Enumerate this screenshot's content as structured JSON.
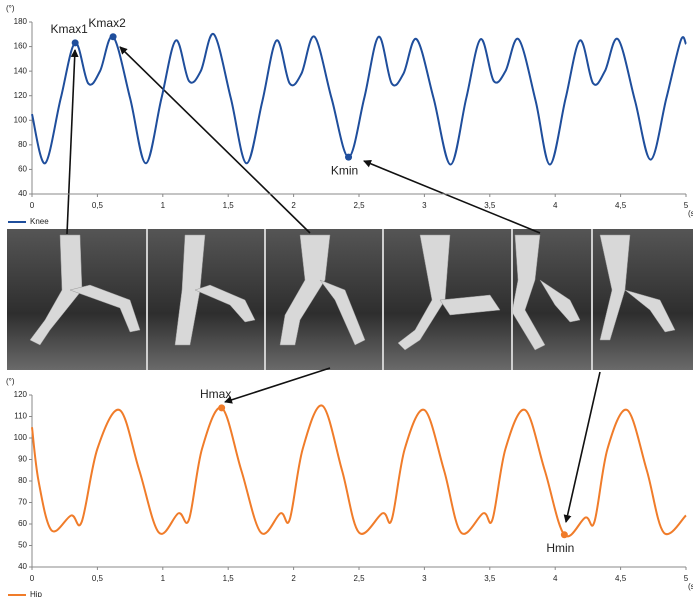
{
  "chart_data": [
    {
      "type": "line",
      "y_label": "(°)",
      "x_label": "(s)",
      "x": [
        0,
        0.1,
        0.22,
        0.33,
        0.43,
        0.52,
        0.62,
        0.75,
        0.87,
        0.99,
        1.1,
        1.2,
        1.29,
        1.39,
        1.52,
        1.64,
        1.76,
        1.87,
        1.97,
        2.06,
        2.16,
        2.29,
        2.42,
        2.54,
        2.65,
        2.75,
        2.84,
        2.94,
        3.07,
        3.2,
        3.32,
        3.43,
        3.53,
        3.62,
        3.72,
        3.85,
        3.96,
        4.08,
        4.19,
        4.29,
        4.38,
        4.48,
        4.61,
        4.73,
        4.85,
        4.96,
        5
      ],
      "series": [
        {
          "name": "Knee",
          "color": "#1f4e9c",
          "values": [
            105,
            65,
            118,
            163,
            130,
            140,
            168,
            118,
            65,
            118,
            165,
            132,
            140,
            170,
            118,
            65,
            115,
            165,
            130,
            138,
            168,
            118,
            70,
            118,
            168,
            130,
            138,
            166,
            118,
            64,
            118,
            166,
            132,
            140,
            166,
            116,
            64,
            118,
            165,
            130,
            140,
            166,
            116,
            68,
            118,
            165,
            162
          ]
        }
      ],
      "annotations": [
        {
          "text": "Kmax1",
          "x": 0.33,
          "y": 163
        },
        {
          "text": "Kmax2",
          "x": 0.62,
          "y": 168
        },
        {
          "text": "Kmin",
          "x": 2.42,
          "y": 70
        }
      ],
      "xlim": [
        0,
        5
      ],
      "xticks": [
        0,
        {
          "value": 0.5,
          "label": "0,5"
        },
        1,
        {
          "value": 1.5,
          "label": "1,5"
        },
        2,
        {
          "value": 2.5,
          "label": "2,5"
        },
        3,
        {
          "value": 3.5,
          "label": "3,5"
        },
        4,
        {
          "value": 4.5,
          "label": "4,5"
        },
        5
      ],
      "ylim": [
        40,
        180
      ],
      "yticks": [
        40,
        60,
        80,
        100,
        120,
        140,
        160,
        180
      ],
      "grid": false,
      "legend": "bottom-left"
    },
    {
      "type": "line",
      "y_label": "(°)",
      "x_label": "(s)",
      "x": [
        0,
        0.05,
        0.15,
        0.3,
        0.38,
        0.5,
        0.67,
        0.82,
        0.97,
        1.12,
        1.2,
        1.3,
        1.45,
        1.6,
        1.75,
        1.9,
        1.97,
        2.07,
        2.22,
        2.37,
        2.5,
        2.68,
        2.75,
        2.85,
        3.0,
        3.15,
        3.28,
        3.45,
        3.52,
        3.62,
        3.77,
        3.92,
        4.07,
        4.23,
        4.3,
        4.4,
        4.55,
        4.7,
        4.83,
        5
      ],
      "series": [
        {
          "name": "Hip",
          "color": "#f07c2a",
          "values": [
            105,
            80,
            57,
            64,
            61,
            95,
            113,
            85,
            56,
            65,
            62,
            95,
            114,
            85,
            56,
            65,
            62,
            95,
            115,
            85,
            56,
            65,
            62,
            95,
            113,
            85,
            56,
            65,
            62,
            95,
            113,
            85,
            55,
            63,
            61,
            95,
            113,
            85,
            56,
            64
          ]
        }
      ],
      "annotations": [
        {
          "text": "Hmax",
          "x": 1.45,
          "y": 114
        },
        {
          "text": "Hmin",
          "x": 4.07,
          "y": 55
        }
      ],
      "xlim": [
        0,
        5
      ],
      "xticks": [
        0,
        {
          "value": 0.5,
          "label": "0,5"
        },
        1,
        {
          "value": 1.5,
          "label": "1,5"
        },
        2,
        {
          "value": 2.5,
          "label": "2,5"
        },
        3,
        {
          "value": 3.5,
          "label": "3,5"
        },
        4,
        {
          "value": 4.5,
          "label": "4,5"
        },
        5
      ],
      "ylim": [
        40,
        120
      ],
      "yticks": [
        40,
        50,
        60,
        70,
        80,
        90,
        100,
        110,
        120
      ],
      "grid": false,
      "legend": "bottom-left"
    }
  ]
}
